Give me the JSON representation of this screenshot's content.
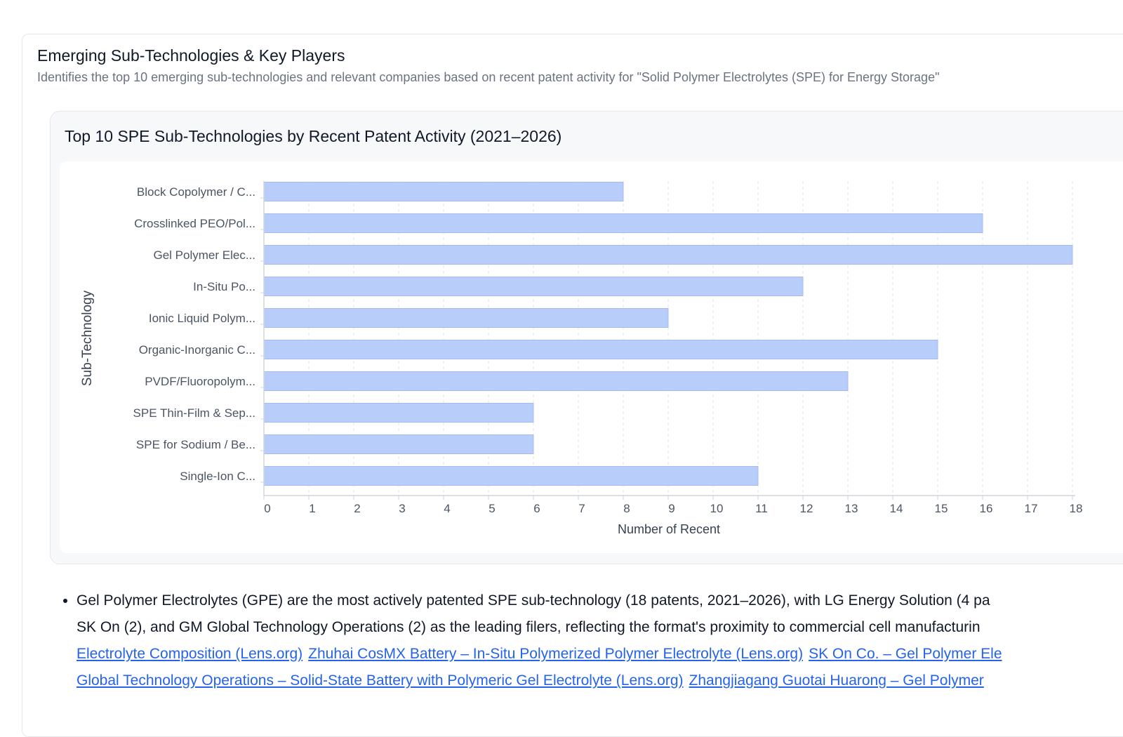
{
  "card": {
    "title": "Emerging Sub-Technologies & Key Players",
    "subtitle": "Identifies the top 10 emerging sub-technologies and relevant companies based on recent patent activity for \"Solid Polymer Electrolytes (SPE) for Energy Storage\""
  },
  "chart_title": "Top 10 SPE Sub-Technologies by Recent Patent Activity (2021–2026)",
  "chart_data": {
    "type": "bar",
    "orientation": "horizontal",
    "title": "Top 10 SPE Sub-Technologies by Recent Patent Activity (2021–2026)",
    "categories": [
      "Block Copolymer / C...",
      "Crosslinked PEO/Pol...",
      "Gel Polymer Elec...",
      "In-Situ Po...",
      "Ionic Liquid Polym...",
      "Organic-Inorganic C...",
      "PVDF/Fluoropolym...",
      "SPE Thin-Film & Sep...",
      "SPE for Sodium / Be...",
      "Single-Ion C..."
    ],
    "values": [
      8,
      16,
      18,
      12,
      9,
      15,
      13,
      6,
      6,
      11
    ],
    "xlabel": "Number of Recent",
    "ylabel": "Sub-Technology",
    "xlim": [
      0,
      18
    ],
    "xticks": [
      "0",
      "1",
      "2",
      "3",
      "4",
      "5",
      "6",
      "7",
      "8",
      "9",
      "10",
      "11",
      "12",
      "13",
      "14",
      "15",
      "16",
      "17",
      "18"
    ],
    "grid": "vertical dashed",
    "bar_color": "#b9cdfb",
    "bar_edge_color": "#a3bbf5"
  },
  "bullets": {
    "item1": {
      "line1": "Gel Polymer Electrolytes (GPE) are the most actively patented SPE sub-technology (18 patents, 2021–2026), with LG Energy Solution (4 pa",
      "line2": "SK On (2), and GM Global Technology Operations (2) as the leading filers, reflecting the format's proximity to commercial cell manufacturin",
      "links": [
        "Electrolyte Composition (Lens.org)",
        "Zhuhai CosMX Battery – In-Situ Polymerized Polymer Electrolyte (Lens.org)",
        "SK On Co. – Gel Polymer Ele",
        "Global Technology Operations – Solid-State Battery with Polymeric Gel Electrolyte (Lens.org)",
        "Zhangjiagang Guotai Huarong – Gel Polymer"
      ]
    }
  },
  "colors": {
    "link": "#2563eb",
    "muted_text": "#6b7280",
    "grid": "#e5e7eb",
    "axis": "#d1d5db"
  }
}
